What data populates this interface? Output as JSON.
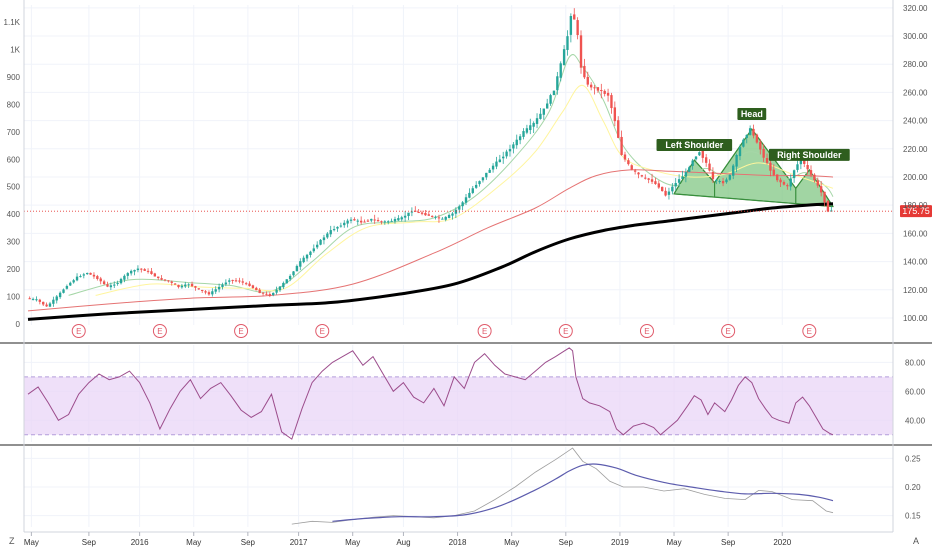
{
  "chart_data": {
    "type": "candlestick",
    "main_panel": {
      "left_axis_ticks": [
        "0",
        "100",
        "200",
        "300",
        "400",
        "500",
        "600",
        "700",
        "800",
        "900",
        "1K",
        "1.1K"
      ],
      "left_axis_values": [
        0,
        100,
        200,
        300,
        400,
        500,
        600,
        700,
        800,
        900,
        1000,
        1100
      ],
      "right_axis_ticks": [
        "100.00",
        "120.00",
        "140.00",
        "160.00",
        "180.00",
        "200.00",
        "220.00",
        "240.00",
        "260.00",
        "280.00",
        "300.00",
        "320.00"
      ],
      "right_axis_values": [
        100,
        120,
        140,
        160,
        180,
        200,
        220,
        240,
        260,
        280,
        300,
        320
      ],
      "right_axis_range": [
        95,
        322
      ],
      "last_price": 175.75,
      "last_price_label": "175.75",
      "price_path": [
        [
          0,
          114
        ],
        [
          3,
          113
        ],
        [
          6,
          108
        ],
        [
          9,
          115
        ],
        [
          12,
          123
        ],
        [
          15,
          129
        ],
        [
          18,
          132
        ],
        [
          21,
          128
        ],
        [
          24,
          122
        ],
        [
          27,
          125
        ],
        [
          30,
          132
        ],
        [
          33,
          135
        ],
        [
          36,
          133
        ],
        [
          39,
          128
        ],
        [
          42,
          126
        ],
        [
          45,
          122
        ],
        [
          48,
          124
        ],
        [
          51,
          120
        ],
        [
          54,
          117
        ],
        [
          57,
          122
        ],
        [
          60,
          127
        ],
        [
          63,
          126
        ],
        [
          66,
          123
        ],
        [
          69,
          118
        ],
        [
          72,
          116
        ],
        [
          75,
          122
        ],
        [
          78,
          130
        ],
        [
          81,
          140
        ],
        [
          84,
          147
        ],
        [
          87,
          155
        ],
        [
          90,
          162
        ],
        [
          93,
          166
        ],
        [
          96,
          170
        ],
        [
          99,
          168
        ],
        [
          102,
          170
        ],
        [
          105,
          168
        ],
        [
          108,
          169
        ],
        [
          111,
          171
        ],
        [
          114,
          176
        ],
        [
          117,
          174
        ],
        [
          120,
          172
        ],
        [
          123,
          170
        ],
        [
          126,
          174
        ],
        [
          129,
          182
        ],
        [
          132,
          192
        ],
        [
          135,
          200
        ],
        [
          138,
          208
        ],
        [
          141,
          215
        ],
        [
          144,
          223
        ],
        [
          147,
          232
        ],
        [
          150,
          238
        ],
        [
          153,
          248
        ],
        [
          156,
          262
        ],
        [
          158,
          280
        ],
        [
          160,
          300
        ],
        [
          161,
          315
        ],
        [
          162,
          312
        ],
        [
          163,
          300
        ],
        [
          164,
          278
        ],
        [
          166,
          265
        ],
        [
          169,
          262
        ],
        [
          172,
          258
        ],
        [
          174,
          240
        ],
        [
          176,
          216
        ],
        [
          179,
          205
        ],
        [
          182,
          200
        ],
        [
          185,
          197
        ],
        [
          187,
          193
        ],
        [
          189,
          187
        ],
        [
          192,
          196
        ],
        [
          195,
          203
        ],
        [
          197,
          212
        ],
        [
          199,
          218
        ],
        [
          201,
          210
        ],
        [
          203,
          198
        ],
        [
          206,
          196
        ],
        [
          208,
          201
        ],
        [
          210,
          215
        ],
        [
          212,
          227
        ],
        [
          214,
          234
        ],
        [
          216,
          225
        ],
        [
          218,
          214
        ],
        [
          220,
          205
        ],
        [
          222,
          198
        ],
        [
          225,
          193
        ],
        [
          227,
          205
        ],
        [
          229,
          213
        ],
        [
          231,
          205
        ],
        [
          233,
          198
        ],
        [
          235,
          189
        ],
        [
          237,
          176
        ],
        [
          238,
          175.75
        ]
      ],
      "ma_fast": [
        [
          12,
          116
        ],
        [
          30,
          127
        ],
        [
          48,
          125
        ],
        [
          60,
          123
        ],
        [
          72,
          119
        ],
        [
          84,
          140
        ],
        [
          96,
          164
        ],
        [
          108,
          168
        ],
        [
          120,
          171
        ],
        [
          132,
          186
        ],
        [
          144,
          214
        ],
        [
          154,
          246
        ],
        [
          160,
          285
        ],
        [
          164,
          278
        ],
        [
          170,
          255
        ],
        [
          176,
          222
        ],
        [
          184,
          202
        ],
        [
          192,
          194
        ],
        [
          200,
          206
        ],
        [
          206,
          201
        ],
        [
          212,
          217
        ],
        [
          218,
          214
        ],
        [
          224,
          199
        ],
        [
          230,
          203
        ],
        [
          236,
          193
        ],
        [
          238,
          186
        ]
      ],
      "ma_slow": [
        [
          20,
          116
        ],
        [
          36,
          124
        ],
        [
          50,
          122
        ],
        [
          64,
          121
        ],
        [
          76,
          121
        ],
        [
          88,
          145
        ],
        [
          100,
          164
        ],
        [
          114,
          168
        ],
        [
          126,
          171
        ],
        [
          140,
          195
        ],
        [
          150,
          218
        ],
        [
          158,
          246
        ],
        [
          164,
          265
        ],
        [
          170,
          240
        ],
        [
          176,
          214
        ],
        [
          186,
          204
        ],
        [
          196,
          200
        ],
        [
          206,
          202
        ],
        [
          216,
          210
        ],
        [
          226,
          202
        ],
        [
          238,
          192
        ]
      ],
      "ma_100": [
        [
          0,
          105
        ],
        [
          24,
          110
        ],
        [
          48,
          114
        ],
        [
          72,
          116
        ],
        [
          96,
          124
        ],
        [
          120,
          146
        ],
        [
          136,
          164
        ],
        [
          150,
          178
        ],
        [
          160,
          192
        ],
        [
          168,
          201
        ],
        [
          178,
          205
        ],
        [
          190,
          204
        ],
        [
          200,
          203
        ],
        [
          210,
          202
        ],
        [
          220,
          201
        ],
        [
          230,
          201
        ],
        [
          238,
          200
        ]
      ],
      "ma_200": [
        [
          0,
          99
        ],
        [
          24,
          103
        ],
        [
          48,
          106
        ],
        [
          72,
          109
        ],
        [
          90,
          111
        ],
        [
          110,
          117
        ],
        [
          126,
          124
        ],
        [
          140,
          136
        ],
        [
          150,
          147
        ],
        [
          160,
          156
        ],
        [
          170,
          162
        ],
        [
          180,
          166
        ],
        [
          190,
          169
        ],
        [
          200,
          172
        ],
        [
          210,
          175
        ],
        [
          220,
          178
        ],
        [
          230,
          180
        ],
        [
          238,
          181
        ]
      ],
      "pattern_line": [
        [
          191,
          188
        ],
        [
          238,
          179
        ]
      ],
      "pattern_points": [
        [
          191,
          188
        ],
        [
          197,
          212
        ],
        [
          203,
          196
        ],
        [
          214,
          234
        ],
        [
          227,
          192
        ],
        [
          231,
          205
        ],
        [
          238,
          179
        ]
      ],
      "annotations": [
        "Left Shoulder",
        "Head",
        "Right Shoulder"
      ],
      "annotation_points": [
        [
          197,
          222
        ],
        [
          214,
          244
        ],
        [
          231,
          215
        ]
      ],
      "event_markers": [
        15,
        39,
        63,
        87,
        135,
        159,
        183,
        207,
        231
      ],
      "event_label": "E"
    },
    "rsi_panel": {
      "ticks": [
        "40.00",
        "60.00",
        "80.00"
      ],
      "tick_values": [
        40,
        60,
        80
      ],
      "range": [
        25,
        92
      ],
      "band": [
        30,
        70
      ],
      "values": [
        [
          0,
          58
        ],
        [
          3,
          63
        ],
        [
          6,
          52
        ],
        [
          9,
          40
        ],
        [
          12,
          44
        ],
        [
          15,
          58
        ],
        [
          18,
          66
        ],
        [
          21,
          72
        ],
        [
          24,
          68
        ],
        [
          27,
          70
        ],
        [
          30,
          74
        ],
        [
          33,
          66
        ],
        [
          36,
          52
        ],
        [
          39,
          34
        ],
        [
          42,
          48
        ],
        [
          45,
          60
        ],
        [
          48,
          68
        ],
        [
          51,
          55
        ],
        [
          54,
          62
        ],
        [
          57,
          66
        ],
        [
          60,
          57
        ],
        [
          63,
          47
        ],
        [
          66,
          42
        ],
        [
          69,
          46
        ],
        [
          72,
          58
        ],
        [
          75,
          32
        ],
        [
          78,
          27
        ],
        [
          81,
          48
        ],
        [
          84,
          66
        ],
        [
          87,
          74
        ],
        [
          90,
          80
        ],
        [
          93,
          84
        ],
        [
          96,
          88
        ],
        [
          99,
          78
        ],
        [
          102,
          84
        ],
        [
          105,
          72
        ],
        [
          108,
          60
        ],
        [
          111,
          66
        ],
        [
          114,
          56
        ],
        [
          117,
          52
        ],
        [
          120,
          62
        ],
        [
          123,
          50
        ],
        [
          126,
          70
        ],
        [
          129,
          62
        ],
        [
          132,
          80
        ],
        [
          135,
          86
        ],
        [
          138,
          78
        ],
        [
          141,
          72
        ],
        [
          144,
          70
        ],
        [
          147,
          68
        ],
        [
          150,
          74
        ],
        [
          153,
          80
        ],
        [
          156,
          84
        ],
        [
          158,
          87
        ],
        [
          160,
          90
        ],
        [
          161,
          88
        ],
        [
          162,
          70
        ],
        [
          164,
          55
        ],
        [
          166,
          52
        ],
        [
          169,
          50
        ],
        [
          172,
          46
        ],
        [
          174,
          34
        ],
        [
          176,
          30
        ],
        [
          179,
          36
        ],
        [
          182,
          38
        ],
        [
          185,
          35
        ],
        [
          187,
          30
        ],
        [
          189,
          34
        ],
        [
          192,
          40
        ],
        [
          195,
          50
        ],
        [
          197,
          57
        ],
        [
          199,
          54
        ],
        [
          201,
          44
        ],
        [
          203,
          52
        ],
        [
          206,
          46
        ],
        [
          208,
          54
        ],
        [
          210,
          64
        ],
        [
          212,
          70
        ],
        [
          214,
          66
        ],
        [
          216,
          55
        ],
        [
          218,
          48
        ],
        [
          220,
          42
        ],
        [
          222,
          40
        ],
        [
          225,
          38
        ],
        [
          227,
          52
        ],
        [
          229,
          56
        ],
        [
          231,
          50
        ],
        [
          233,
          42
        ],
        [
          235,
          34
        ],
        [
          237,
          31
        ],
        [
          238,
          30
        ]
      ]
    },
    "vol_panel": {
      "ticks": [
        "0.15",
        "0.20",
        "0.25"
      ],
      "tick_values": [
        0.15,
        0.2,
        0.25
      ],
      "range": [
        0.13,
        0.27
      ],
      "raw": [
        [
          78,
          0.135
        ],
        [
          84,
          0.14
        ],
        [
          90,
          0.138
        ],
        [
          96,
          0.143
        ],
        [
          102,
          0.147
        ],
        [
          108,
          0.15
        ],
        [
          114,
          0.148
        ],
        [
          120,
          0.146
        ],
        [
          126,
          0.15
        ],
        [
          132,
          0.158
        ],
        [
          138,
          0.178
        ],
        [
          144,
          0.2
        ],
        [
          150,
          0.226
        ],
        [
          156,
          0.248
        ],
        [
          159,
          0.26
        ],
        [
          161,
          0.268
        ],
        [
          164,
          0.245
        ],
        [
          168,
          0.232
        ],
        [
          172,
          0.21
        ],
        [
          176,
          0.2
        ],
        [
          182,
          0.2
        ],
        [
          188,
          0.193
        ],
        [
          194,
          0.197
        ],
        [
          200,
          0.187
        ],
        [
          206,
          0.18
        ],
        [
          212,
          0.178
        ],
        [
          216,
          0.194
        ],
        [
          220,
          0.192
        ],
        [
          226,
          0.178
        ],
        [
          232,
          0.176
        ],
        [
          236,
          0.158
        ],
        [
          238,
          0.155
        ]
      ],
      "smoothed": [
        [
          90,
          0.14
        ],
        [
          100,
          0.145
        ],
        [
          110,
          0.148
        ],
        [
          120,
          0.148
        ],
        [
          130,
          0.152
        ],
        [
          140,
          0.168
        ],
        [
          150,
          0.195
        ],
        [
          156,
          0.214
        ],
        [
          160,
          0.228
        ],
        [
          164,
          0.238
        ],
        [
          168,
          0.24
        ],
        [
          174,
          0.233
        ],
        [
          180,
          0.22
        ],
        [
          188,
          0.208
        ],
        [
          196,
          0.2
        ],
        [
          204,
          0.193
        ],
        [
          212,
          0.188
        ],
        [
          220,
          0.189
        ],
        [
          228,
          0.187
        ],
        [
          234,
          0.182
        ],
        [
          238,
          0.176
        ]
      ]
    },
    "x_axis": {
      "labels": [
        "May",
        "Sep",
        "2016",
        "May",
        "Sep",
        "2017",
        "May",
        "Aug",
        "2018",
        "May",
        "Sep",
        "2019",
        "May",
        "Sep",
        "2020"
      ],
      "positions": [
        1,
        18,
        33,
        49,
        65,
        80,
        96,
        111,
        127,
        143,
        159,
        175,
        191,
        207,
        223
      ]
    },
    "colors": {
      "up": "#26a69a",
      "down": "#ef5350",
      "ma_fast": "#a5d6a7",
      "ma_slow": "#fff59d",
      "ma_100": "#e57373",
      "ma_200": "#000000",
      "pattern_fill": "#81c784",
      "pattern_stroke": "#388e3c",
      "label_bg": "#2e5e1e",
      "rsi_line": "#9c4d8c",
      "rsi_band": "#e9d6f7",
      "vol_raw": "#9e9e9e",
      "vol_smoothed": "#5c5cad",
      "price_line": "#e53935",
      "event": "#e05a6a"
    }
  },
  "corner_left": "Z",
  "corner_right": "A"
}
